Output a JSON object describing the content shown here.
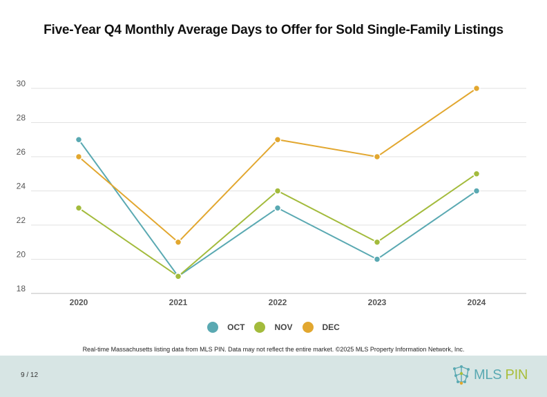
{
  "chart_data": {
    "type": "line",
    "title": "Five-Year Q4 Monthly Average Days to Offer for Sold Single-Family Listings",
    "xlabel": "",
    "ylabel": "",
    "categories": [
      "2020",
      "2021",
      "2022",
      "2023",
      "2024"
    ],
    "ylim": [
      18,
      30
    ],
    "yticks": [
      18,
      20,
      22,
      24,
      26,
      28,
      30
    ],
    "grid": true,
    "legend_position": "bottom",
    "series": [
      {
        "name": "OCT",
        "color": "#5aa9b2",
        "values": [
          27,
          19,
          23,
          20,
          24
        ]
      },
      {
        "name": "NOV",
        "color": "#a3bb3c",
        "values": [
          23,
          19,
          24,
          21,
          25
        ]
      },
      {
        "name": "DEC",
        "color": "#e2a72f",
        "values": [
          26,
          21,
          27,
          26,
          30
        ]
      }
    ]
  },
  "footnote": "Real-time Massachusetts listing data from MLS PIN. Data may not reflect the entire market. ©2025 MLS Property Information Network, Inc.",
  "footer": {
    "page_number": "9 / 12",
    "logo_mls": "MLS",
    "logo_pin": "PIN"
  }
}
